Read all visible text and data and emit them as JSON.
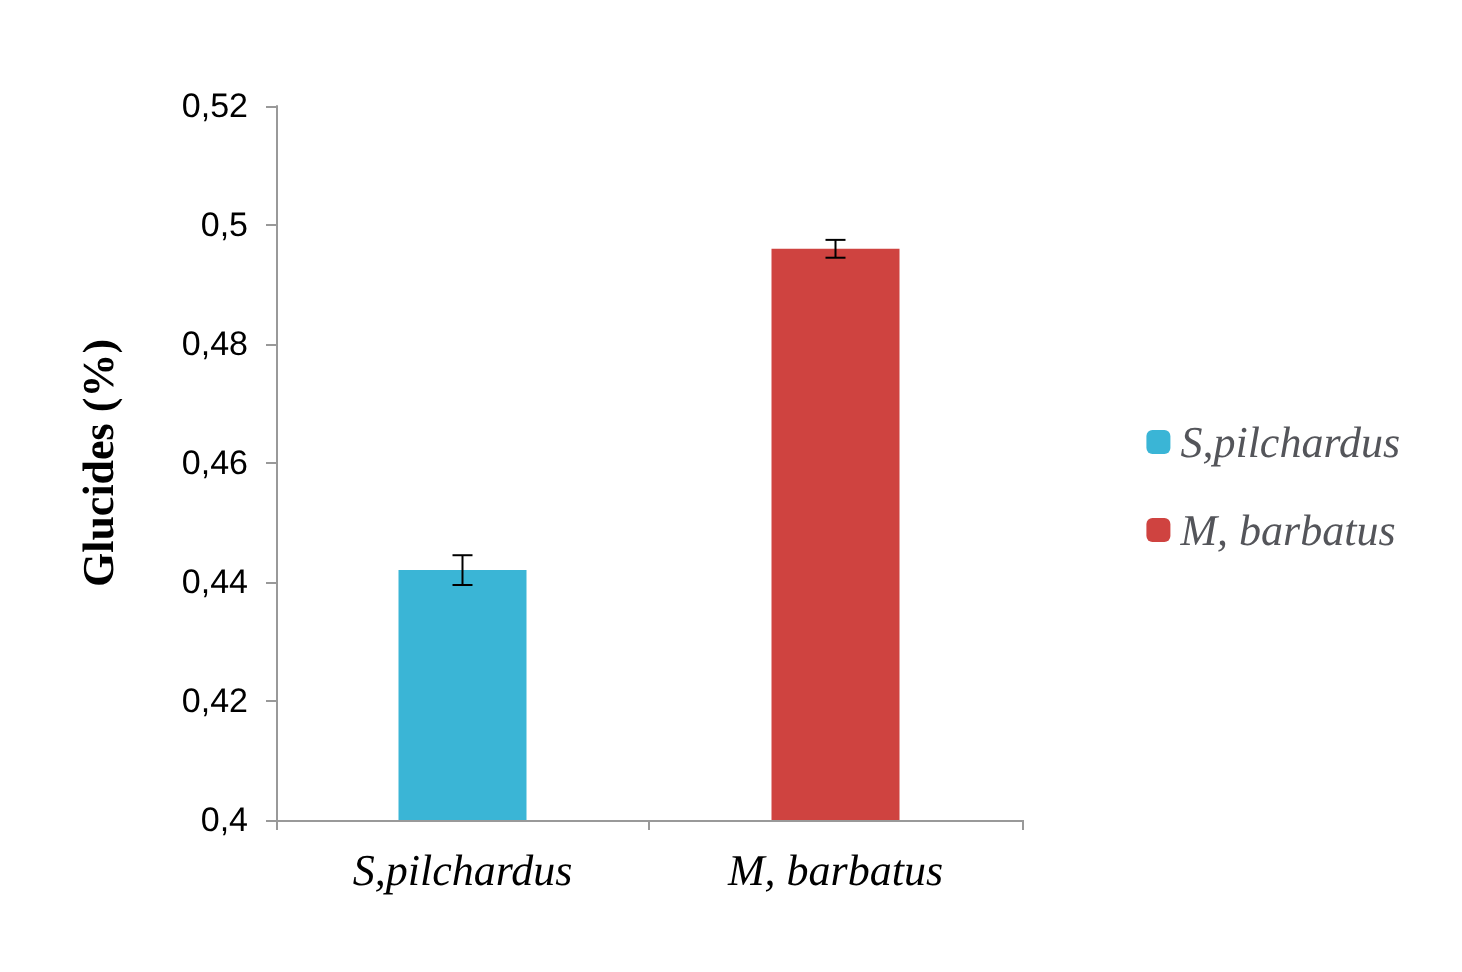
{
  "chart_data": {
    "type": "bar",
    "ylabel": "Glucides (%)",
    "categories": [
      "S,pilchardus",
      "M, barbatus"
    ],
    "series": [
      {
        "name": "S,pilchardus",
        "color": "#3ab5d6",
        "values": [
          0.442,
          null
        ],
        "errors": [
          0.0025,
          null
        ]
      },
      {
        "name": "M, barbatus",
        "color": "#cf4340",
        "values": [
          null,
          0.496
        ],
        "errors": [
          null,
          0.0015
        ]
      }
    ],
    "ylim": [
      0.4,
      0.52
    ],
    "yticks": [
      {
        "value": 0.4,
        "label": "0,4"
      },
      {
        "value": 0.42,
        "label": "0,42"
      },
      {
        "value": 0.44,
        "label": "0,44"
      },
      {
        "value": 0.46,
        "label": "0,46"
      },
      {
        "value": 0.48,
        "label": "0,48"
      },
      {
        "value": 0.5,
        "label": "0,5"
      },
      {
        "value": 0.52,
        "label": "0,52"
      }
    ],
    "grid": false,
    "legend": "right"
  }
}
